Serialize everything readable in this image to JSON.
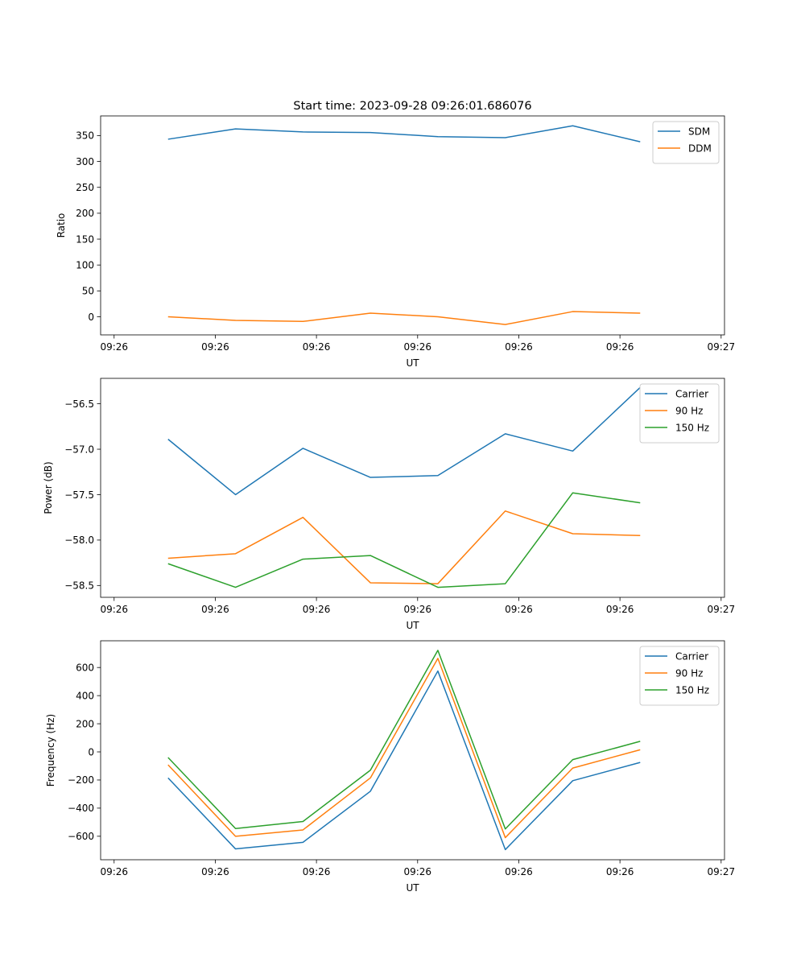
{
  "figure_title": "Start time: 2023-09-28 09:26:01.686076",
  "colors": {
    "c0": "#1f77b4",
    "c1": "#ff7f0e",
    "c2": "#2ca02c"
  },
  "chart_data": [
    {
      "type": "line",
      "title": "Start time: 2023-09-28 09:26:01.686076",
      "xlabel": "UT",
      "ylabel": "Ratio",
      "x": [
        1,
        2,
        3,
        4,
        5,
        6,
        7,
        8
      ],
      "xlim": [
        0,
        9.25
      ],
      "x_ticks": [
        0.2,
        1.7,
        3.2,
        4.7,
        6.2,
        7.7,
        9.2
      ],
      "x_tick_labels": [
        "09:26",
        "09:26",
        "09:26",
        "09:26",
        "09:26",
        "09:26",
        "09:27"
      ],
      "ylim": [
        -35,
        388
      ],
      "y_ticks": [
        0,
        50,
        100,
        150,
        200,
        250,
        300,
        350
      ],
      "y_tick_labels": [
        "0",
        "50",
        "100",
        "150",
        "200",
        "250",
        "300",
        "350"
      ],
      "legend_position": "top-right",
      "series": [
        {
          "name": "SDM",
          "color": "#1f77b4",
          "values": [
            343,
            363,
            357,
            356,
            348,
            346,
            369,
            338
          ]
        },
        {
          "name": "DDM",
          "color": "#ff7f0e",
          "values": [
            0,
            -7,
            -9,
            7,
            0,
            -15,
            10,
            7
          ]
        }
      ]
    },
    {
      "type": "line",
      "title": "",
      "xlabel": "UT",
      "ylabel": "Power (dB)",
      "x": [
        1,
        2,
        3,
        4,
        5,
        6,
        7,
        8
      ],
      "xlim": [
        0,
        9.25
      ],
      "x_ticks": [
        0.2,
        1.7,
        3.2,
        4.7,
        6.2,
        7.7,
        9.2
      ],
      "x_tick_labels": [
        "09:26",
        "09:26",
        "09:26",
        "09:26",
        "09:26",
        "09:26",
        "09:27"
      ],
      "ylim": [
        -58.63,
        -56.22
      ],
      "y_ticks": [
        -58.5,
        -58.0,
        -57.5,
        -57.0,
        -56.5
      ],
      "y_tick_labels": [
        "−58.5",
        "−58.0",
        "−57.5",
        "−57.0",
        "−56.5"
      ],
      "legend_position": "top-right",
      "series": [
        {
          "name": "Carrier",
          "color": "#1f77b4",
          "values": [
            -56.89,
            -57.5,
            -56.99,
            -57.31,
            -57.29,
            -56.83,
            -57.02,
            -56.32
          ]
        },
        {
          "name": "90 Hz",
          "color": "#ff7f0e",
          "values": [
            -58.2,
            -58.15,
            -57.75,
            -58.47,
            -58.48,
            -57.68,
            -57.93,
            -57.95
          ]
        },
        {
          "name": "150 Hz",
          "color": "#2ca02c",
          "values": [
            -58.26,
            -58.52,
            -58.21,
            -58.17,
            -58.52,
            -58.48,
            -57.48,
            -57.59
          ]
        }
      ]
    },
    {
      "type": "line",
      "title": "",
      "xlabel": "UT",
      "ylabel": "Frequency (Hz)",
      "x": [
        1,
        2,
        3,
        4,
        5,
        6,
        7,
        8
      ],
      "xlim": [
        0,
        9.25
      ],
      "x_ticks": [
        0.2,
        1.7,
        3.2,
        4.7,
        6.2,
        7.7,
        9.2
      ],
      "x_tick_labels": [
        "09:26",
        "09:26",
        "09:26",
        "09:26",
        "09:26",
        "09:26",
        "09:27"
      ],
      "ylim": [
        -767,
        790
      ],
      "y_ticks": [
        -600,
        -400,
        -200,
        0,
        200,
        400,
        600
      ],
      "y_tick_labels": [
        "−600",
        "−400",
        "−200",
        "0",
        "200",
        "400",
        "600"
      ],
      "legend_position": "top-right",
      "series": [
        {
          "name": "Carrier",
          "color": "#1f77b4",
          "values": [
            -185,
            -690,
            -643,
            -280,
            575,
            -695,
            -205,
            -75
          ]
        },
        {
          "name": "90 Hz",
          "color": "#ff7f0e",
          "values": [
            -92,
            -600,
            -555,
            -185,
            665,
            -610,
            -115,
            15
          ]
        },
        {
          "name": "150 Hz",
          "color": "#2ca02c",
          "values": [
            -40,
            -545,
            -495,
            -130,
            722,
            -548,
            -55,
            75
          ]
        }
      ]
    }
  ]
}
